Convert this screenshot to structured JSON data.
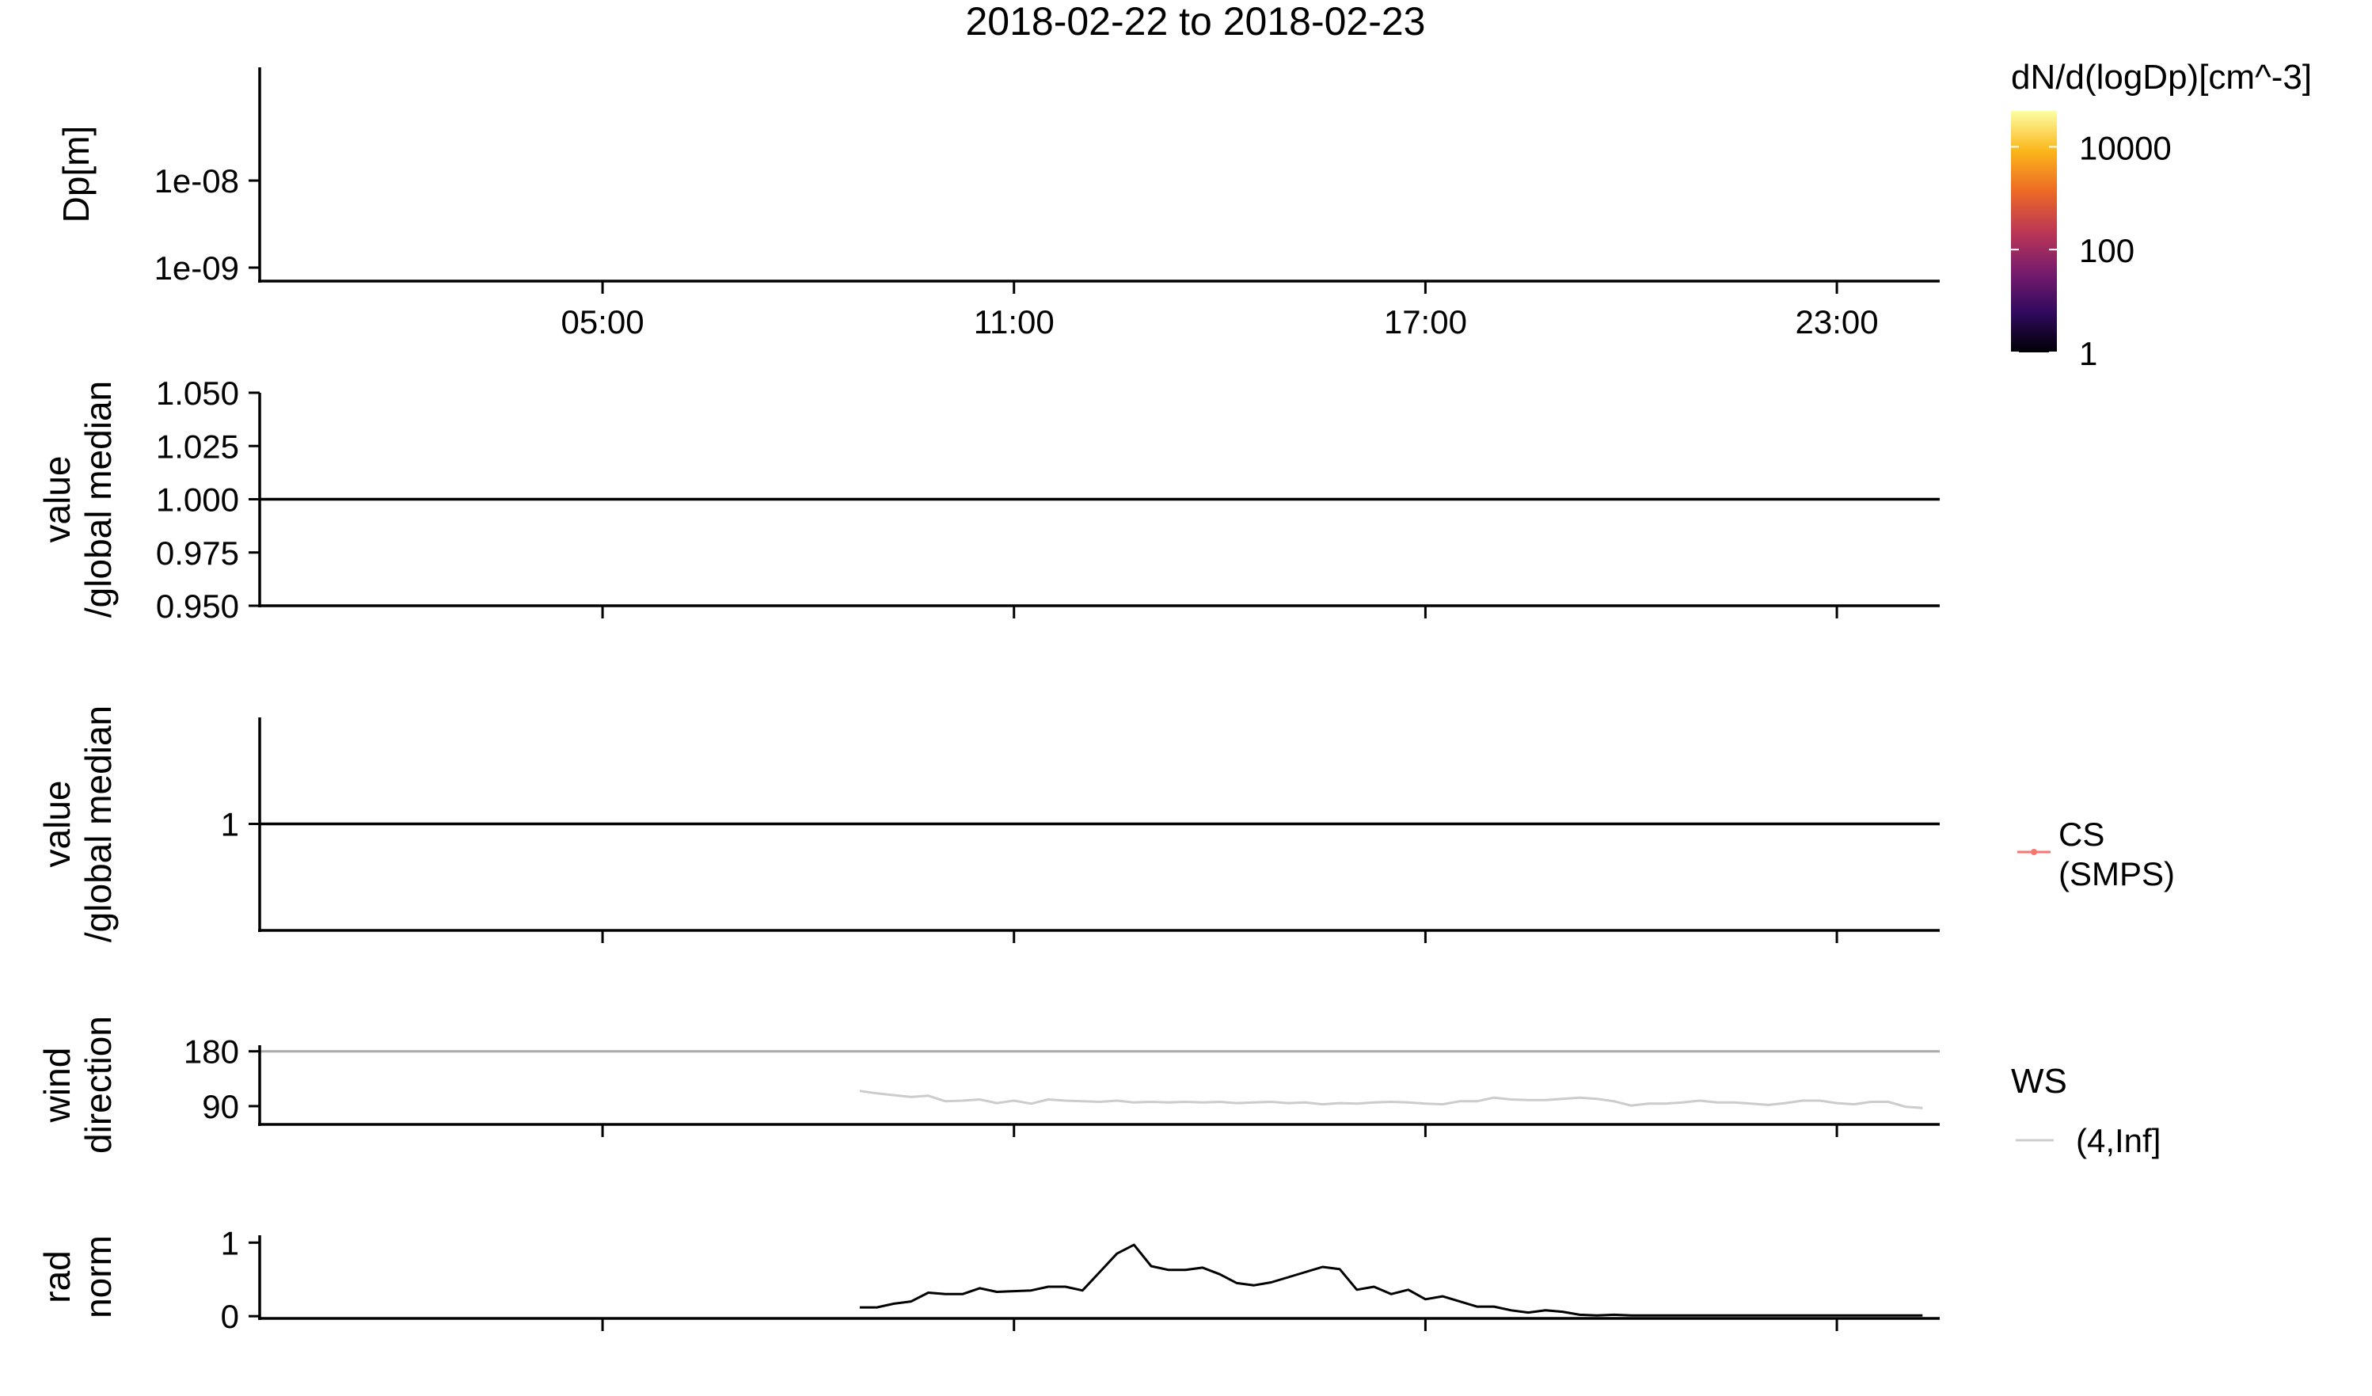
{
  "title": "2018-02-22  to  2018-02-23",
  "colorbar": {
    "title": "dN/d(logDp)[cm^-3]",
    "ticks": [
      {
        "value": 10000,
        "label": "10000"
      },
      {
        "value": 100,
        "label": "100"
      },
      {
        "value": 1,
        "label": "1"
      }
    ],
    "range": [
      1,
      50000
    ],
    "scale": "log",
    "colors": [
      "#000004",
      "#320a5e",
      "#781c6d",
      "#bc3754",
      "#ed6925",
      "#fbb61a",
      "#fcffa4"
    ]
  },
  "chart_data": [
    {
      "type": "heatmap",
      "ylabel": "Dp[m]",
      "yscale": "log",
      "ylim": [
        7e-10,
        2e-07
      ],
      "y_ticks": [
        {
          "value": 1e-08,
          "label": "1e-08"
        },
        {
          "value": 1e-09,
          "label": "1e-09"
        }
      ],
      "xlim": [
        0,
        24.5
      ],
      "x_ticks": [
        {
          "value": 5,
          "label": "05:00"
        },
        {
          "value": 11,
          "label": "11:00"
        },
        {
          "value": 17,
          "label": "17:00"
        },
        {
          "value": 23,
          "label": "23:00"
        }
      ],
      "values": []
    },
    {
      "type": "line",
      "ylabel": [
        "value",
        "/global median"
      ],
      "ylim": [
        0.95,
        1.05
      ],
      "y_ticks": [
        {
          "value": 1.05,
          "label": "1.050"
        },
        {
          "value": 1.025,
          "label": "1.025"
        },
        {
          "value": 1.0,
          "label": "1.000"
        },
        {
          "value": 0.975,
          "label": "0.975"
        },
        {
          "value": 0.95,
          "label": "0.950"
        }
      ],
      "xlim": [
        0,
        24.5
      ],
      "hline": 1.0,
      "series": []
    },
    {
      "type": "line",
      "ylabel": [
        "value",
        "/global median"
      ],
      "ylim": [
        0,
        2
      ],
      "y_ticks": [
        {
          "value": 1,
          "label": "1"
        }
      ],
      "xlim": [
        0,
        24.5
      ],
      "hline": 1.0,
      "legend": {
        "entries": [
          {
            "label": [
              "CS",
              "(SMPS)"
            ],
            "color": "#f8766d"
          }
        ]
      },
      "series": [
        {
          "name": "CS (SMPS)",
          "color": "#f8766d",
          "x": [
            0,
            24.5
          ],
          "y": [
            0,
            0
          ]
        }
      ]
    },
    {
      "type": "line",
      "ylabel": [
        "wind",
        "direction"
      ],
      "ylim": [
        60,
        190
      ],
      "y_ticks": [
        {
          "value": 180,
          "label": "180"
        },
        {
          "value": 90,
          "label": "90"
        }
      ],
      "xlim": [
        0,
        24.5
      ],
      "hline": 180,
      "legend": {
        "title": "WS",
        "entries": [
          {
            "label": "(4,Inf]",
            "color": "#cccccc"
          }
        ]
      },
      "series": [
        {
          "name": "(4,Inf]",
          "color": "#cccccc",
          "x": [
            8.75,
            9.0,
            9.25,
            9.5,
            9.75,
            10.0,
            10.25,
            10.5,
            10.75,
            11.0,
            11.25,
            11.5,
            11.75,
            12.0,
            12.25,
            12.5,
            12.75,
            13.0,
            13.25,
            13.5,
            13.75,
            14.0,
            14.25,
            14.5,
            14.75,
            15.0,
            15.25,
            15.5,
            15.75,
            16.0,
            16.25,
            16.5,
            16.75,
            17.0,
            17.25,
            17.5,
            17.75,
            18.0,
            18.25,
            18.5,
            18.75,
            19.0,
            19.25,
            19.5,
            19.75,
            20.0,
            20.25,
            20.5,
            20.75,
            21.0,
            21.25,
            21.5,
            21.75,
            22.0,
            22.25,
            22.5,
            22.75,
            23.0,
            23.25,
            23.5,
            23.75,
            24.0,
            24.25
          ],
          "y": [
            115,
            111,
            108,
            105,
            107,
            98,
            99,
            101,
            95,
            99,
            94,
            101,
            99,
            98,
            97,
            99,
            96,
            97,
            96,
            97,
            96,
            97,
            95,
            96,
            97,
            95,
            96,
            93,
            95,
            94,
            96,
            97,
            96,
            94,
            93,
            98,
            98,
            104,
            101,
            100,
            100,
            102,
            104,
            102,
            98,
            91,
            94,
            94,
            96,
            99,
            96,
            96,
            94,
            92,
            95,
            99,
            99,
            95,
            93,
            97,
            97,
            89,
            87
          ]
        }
      ]
    },
    {
      "type": "line",
      "ylabel": [
        "rad",
        "norm"
      ],
      "ylim": [
        -0.03,
        1.1
      ],
      "y_ticks": [
        {
          "value": 1,
          "label": "1"
        },
        {
          "value": 0,
          "label": "0"
        }
      ],
      "xlim": [
        0,
        24.5
      ],
      "series": [
        {
          "name": "rad norm",
          "color": "#000000",
          "x": [
            8.75,
            9.0,
            9.25,
            9.5,
            9.75,
            10.0,
            10.25,
            10.5,
            10.75,
            11.0,
            11.25,
            11.5,
            11.75,
            12.0,
            12.25,
            12.5,
            12.75,
            13.0,
            13.25,
            13.5,
            13.75,
            14.0,
            14.25,
            14.5,
            14.75,
            15.0,
            15.25,
            15.5,
            15.75,
            16.0,
            16.25,
            16.5,
            16.75,
            17.0,
            17.25,
            17.5,
            17.75,
            18.0,
            18.25,
            18.5,
            18.75,
            19.0,
            19.25,
            19.5,
            19.75,
            20.0,
            20.25,
            20.5,
            20.75,
            21.0,
            21.25,
            21.5,
            21.75,
            22.0,
            22.25,
            22.5,
            22.75,
            23.0,
            23.25,
            23.5,
            23.75,
            24.0,
            24.25
          ],
          "y": [
            0.12,
            0.12,
            0.17,
            0.2,
            0.32,
            0.3,
            0.3,
            0.38,
            0.33,
            0.34,
            0.35,
            0.4,
            0.4,
            0.35,
            0.6,
            0.85,
            0.97,
            0.68,
            0.63,
            0.63,
            0.66,
            0.57,
            0.45,
            0.42,
            0.46,
            0.53,
            0.6,
            0.67,
            0.64,
            0.36,
            0.4,
            0.3,
            0.36,
            0.23,
            0.27,
            0.2,
            0.13,
            0.13,
            0.08,
            0.05,
            0.08,
            0.06,
            0.02,
            0.01,
            0.02,
            0.01,
            0.01,
            0.01,
            0.01,
            0.01,
            0.01,
            0.01,
            0.01,
            0.01,
            0.01,
            0.01,
            0.01,
            0.01,
            0.01,
            0.01,
            0.01,
            0.01,
            0.01
          ]
        }
      ]
    }
  ]
}
